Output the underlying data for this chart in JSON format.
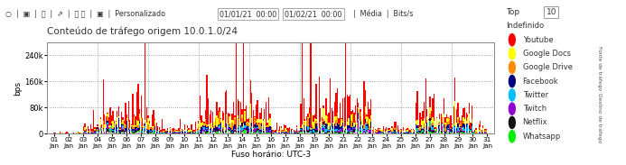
{
  "title": "Conteúdo de tráfego origem 10.0.1.0/24",
  "xlabel": "Fuso horário: UTC-3",
  "ylabel": "bps",
  "top_label": "Top",
  "top_value": "10",
  "ylim": [
    0,
    280000
  ],
  "yticks": [
    0,
    80000,
    160000,
    240000
  ],
  "ytick_labels": [
    "0",
    "80k",
    "160k",
    "240k"
  ],
  "legend_entries": [
    {
      "label": "Indefinido",
      "color": "none"
    },
    {
      "label": "Youtube",
      "color": "#ff0000"
    },
    {
      "label": "Google Docs",
      "color": "#ffff00"
    },
    {
      "label": "Google Drive",
      "color": "#ff8c00"
    },
    {
      "label": "Facebook",
      "color": "#000080"
    },
    {
      "label": "Twitter",
      "color": "#00bfff"
    },
    {
      "label": "Twitch",
      "color": "#9400d3"
    },
    {
      "label": "Netflix",
      "color": "#111111"
    },
    {
      "label": "Whatsapp",
      "color": "#00ee00"
    }
  ],
  "background_color": "#ffffff",
  "plot_bg_color": "#ffffff",
  "title_fontsize": 7.5,
  "axis_fontsize": 6.5,
  "tick_fontsize": 6,
  "legend_fontsize": 6.5
}
